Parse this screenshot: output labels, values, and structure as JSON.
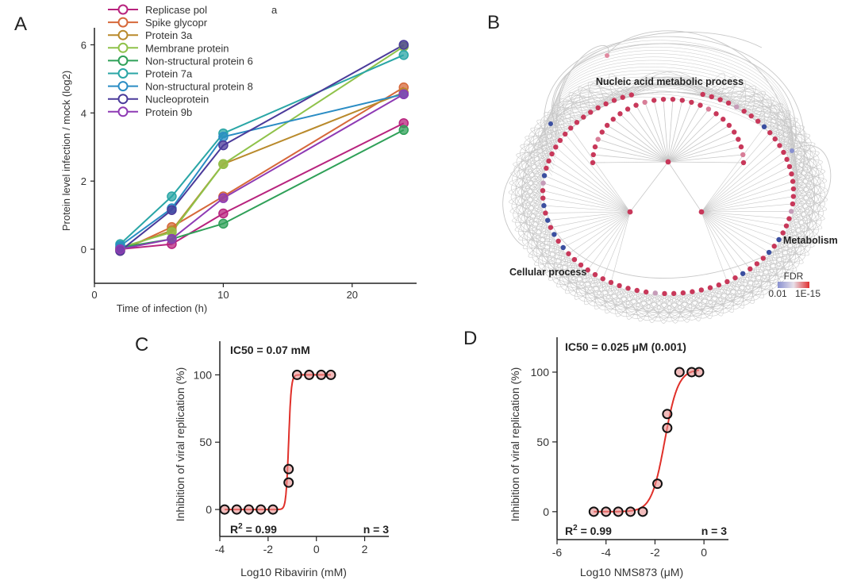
{
  "panels": {
    "a": "A",
    "b": "B",
    "c": "C",
    "d": "D"
  },
  "colors": {
    "axis": "#222222",
    "network_edge": "#c8c8c8",
    "fit_line": "#e0302a",
    "node_red": "#c8385a",
    "node_blue": "#3b4fa0",
    "fdr_low": "#8890d0",
    "fdr_high": "#e03030"
  },
  "chart_data": [
    {
      "id": "A",
      "type": "line",
      "title": "",
      "xlabel": "Time of infection (h)",
      "ylabel": "Protein level infection / mock (log2)",
      "xlim": [
        0,
        25
      ],
      "ylim": [
        -1,
        6.5
      ],
      "xticks": [
        0,
        10,
        20
      ],
      "yticks": [
        0,
        2,
        4,
        6
      ],
      "x": [
        2,
        6,
        10,
        24
      ],
      "legend_position": "top-left",
      "series": [
        {
          "name": "Replicase pol",
          "name_suffix": "a",
          "color": "#b8237e",
          "values": [
            0.0,
            0.15,
            1.05,
            3.7
          ]
        },
        {
          "name": "Spike glycopr",
          "color": "#d6683a",
          "values": [
            -0.05,
            0.65,
            1.55,
            4.75
          ]
        },
        {
          "name": "Protein 3a",
          "color": "#b98a2c",
          "values": [
            0.0,
            0.55,
            2.5,
            4.6
          ]
        },
        {
          "name": "Membrane protein",
          "color": "#8fc24a",
          "values": [
            0.05,
            0.5,
            2.5,
            5.95
          ]
        },
        {
          "name": "Non-structural protein 6",
          "color": "#2fa058",
          "values": [
            0.05,
            0.3,
            0.75,
            3.5
          ]
        },
        {
          "name": "Protein 7a",
          "color": "#2aa6a6",
          "values": [
            0.15,
            1.55,
            3.4,
            5.7
          ]
        },
        {
          "name": "Non-structural protein 8",
          "color": "#2a8cc4",
          "values": [
            0.1,
            1.2,
            3.3,
            4.55
          ]
        },
        {
          "name": "Nucleoprotein",
          "color": "#4a3a9a",
          "values": [
            -0.05,
            1.15,
            3.05,
            6.0
          ]
        },
        {
          "name": "Protein 9b",
          "color": "#8e3ab4",
          "values": [
            0.0,
            0.3,
            1.5,
            4.55
          ]
        }
      ]
    },
    {
      "id": "B",
      "type": "network",
      "cluster_labels": [
        "Nucleic acid metabolic process",
        "Metabolism",
        "Cellular process"
      ],
      "colorbar_title": "FDR",
      "colorbar_min_label": "0.01",
      "colorbar_max_label": "1E-15"
    },
    {
      "id": "C",
      "type": "scatter",
      "xlabel": "Log10 Ribavirin (mM)",
      "ylabel": "Inhibition of viral replication (%)",
      "xlim": [
        -4,
        3
      ],
      "ylim": [
        -20,
        125
      ],
      "xticks": [
        -4,
        -2,
        0,
        2
      ],
      "yticks": [
        0,
        50,
        100
      ],
      "points_x": [
        -3.8,
        -3.3,
        -2.8,
        -2.3,
        -1.8,
        -1.15,
        -1.15,
        -0.8,
        -0.3,
        0.2,
        0.6
      ],
      "points_y": [
        0,
        0,
        0,
        0,
        0,
        30,
        20,
        100,
        100,
        100,
        100
      ],
      "fit": {
        "model": "hill",
        "bottom": 0,
        "top": 100,
        "log_ic50": -1.15,
        "hill": 8
      },
      "ic50_text": "IC50 = 0.07 mM",
      "r2_label": "R",
      "r2_sup": "2",
      "r2_value": " = 0.99",
      "n_text": "n = 3"
    },
    {
      "id": "D",
      "type": "scatter",
      "xlabel": "Log10 NMS873 (μM)",
      "ylabel": "Inhibition of viral replication (%)",
      "xlim": [
        -6,
        1
      ],
      "ylim": [
        -20,
        125
      ],
      "xticks": [
        -6,
        -4,
        -2,
        0
      ],
      "yticks": [
        0,
        50,
        100
      ],
      "points_x": [
        -4.5,
        -4.0,
        -3.5,
        -3.0,
        -2.5,
        -1.9,
        -1.5,
        -1.5,
        -1.0,
        -0.5,
        -0.2
      ],
      "points_y": [
        0,
        0,
        0,
        0,
        0,
        20,
        70,
        60,
        100,
        100,
        100
      ],
      "fit": {
        "model": "hill",
        "bottom": 0,
        "top": 102,
        "log_ic50": -1.6,
        "hill": 1.6
      },
      "ic50_text": "IC50 = 0.025 μM (0.001)",
      "r2_label": "R",
      "r2_sup": "2",
      "r2_value": " = 0.99",
      "n_text": "n = 3"
    }
  ]
}
